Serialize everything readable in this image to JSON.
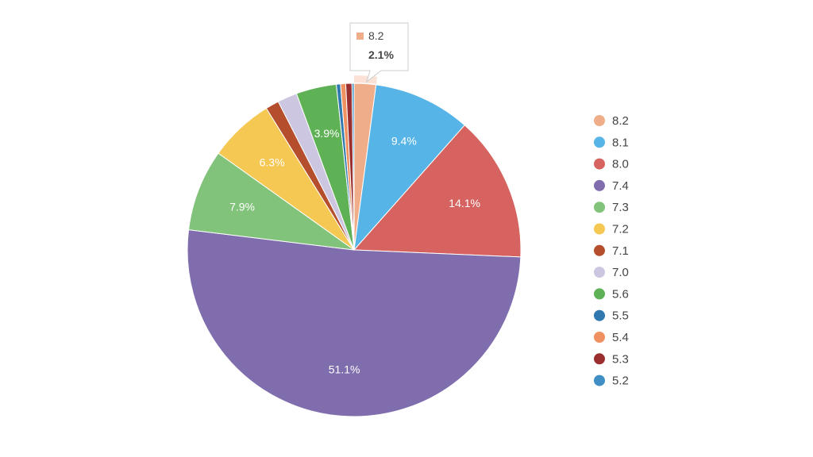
{
  "chart_data": {
    "type": "pie",
    "title": "",
    "start_angle_deg": 0,
    "legend_position": "right",
    "series": [
      {
        "name": "8.2",
        "value": 2.1,
        "label": "",
        "color": "#f0ad8a"
      },
      {
        "name": "8.1",
        "value": 9.4,
        "label": "9.4%",
        "color": "#56b4e6"
      },
      {
        "name": "8.0",
        "value": 14.1,
        "label": "14.1%",
        "color": "#d6635f"
      },
      {
        "name": "7.4",
        "value": 51.1,
        "label": "51.1%",
        "color": "#7f6dad"
      },
      {
        "name": "7.3",
        "value": 7.9,
        "label": "7.9%",
        "color": "#81c37a"
      },
      {
        "name": "7.2",
        "value": 6.3,
        "label": "6.3%",
        "color": "#f5c853"
      },
      {
        "name": "7.1",
        "value": 1.3,
        "label": "",
        "color": "#b44e2c"
      },
      {
        "name": "7.0",
        "value": 1.9,
        "label": "",
        "color": "#cdc6e1"
      },
      {
        "name": "5.6",
        "value": 3.9,
        "label": "3.9%",
        "color": "#5fb156"
      },
      {
        "name": "5.5",
        "value": 0.4,
        "label": "",
        "color": "#2f78b0"
      },
      {
        "name": "5.4",
        "value": 0.5,
        "label": "",
        "color": "#ef9160"
      },
      {
        "name": "5.3",
        "value": 0.6,
        "label": "",
        "color": "#9b2f2f"
      },
      {
        "name": "5.2",
        "value": 0.2,
        "label": "",
        "color": "#3f8ec4"
      }
    ],
    "tooltip": {
      "series_name": "8.2",
      "value_label": "2.1%",
      "color": "#f0ad8a"
    }
  }
}
